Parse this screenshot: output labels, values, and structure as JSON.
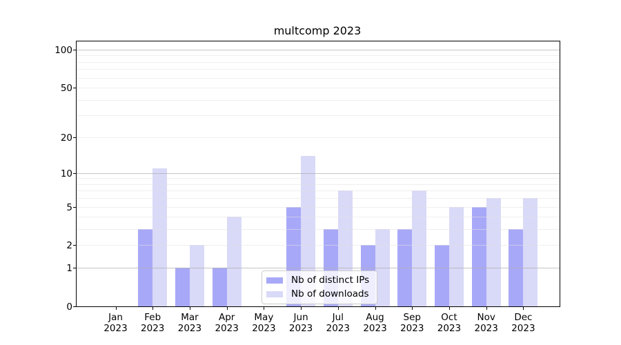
{
  "title": "multcomp 2023",
  "legend": {
    "items": [
      {
        "label": "Nb of distinct IPs",
        "color": "#a8a8f8"
      },
      {
        "label": "Nb of downloads",
        "color": "#d9d9f8"
      }
    ]
  },
  "colors": {
    "bar_distinct_ips": "#a8a8f8",
    "bar_downloads": "#d9d9f8",
    "grid_major": "#b0b0b0",
    "grid_minor": "#e2e2e2",
    "axis": "#000000"
  },
  "chart_data": {
    "type": "bar",
    "title": "multcomp 2023",
    "categories": [
      "Jan",
      "Feb",
      "Mar",
      "Apr",
      "May",
      "Jun",
      "Jul",
      "Aug",
      "Sep",
      "Oct",
      "Nov",
      "Dec"
    ],
    "category_year": "2023",
    "series": [
      {
        "name": "Nb of distinct IPs",
        "color": "#a8a8f8",
        "values": [
          0,
          3,
          1,
          1,
          0,
          5,
          3,
          2,
          3,
          2,
          5,
          3
        ]
      },
      {
        "name": "Nb of downloads",
        "color": "#d9d9f8",
        "values": [
          0,
          11,
          2,
          4,
          0,
          14,
          7,
          3,
          7,
          5,
          6,
          6
        ]
      }
    ],
    "xlabel": "",
    "ylabel": "",
    "yscale": "log1p",
    "ylim": [
      0,
      117
    ],
    "yticks": [
      0,
      1,
      2,
      5,
      10,
      20,
      50,
      100
    ],
    "major_gridlines": [
      1,
      10,
      100
    ],
    "minor_gridlines": [
      2,
      3,
      4,
      5,
      6,
      7,
      8,
      9,
      20,
      30,
      40,
      50,
      60,
      70,
      80,
      90
    ],
    "grid": "on",
    "legend_position": "lower center"
  }
}
